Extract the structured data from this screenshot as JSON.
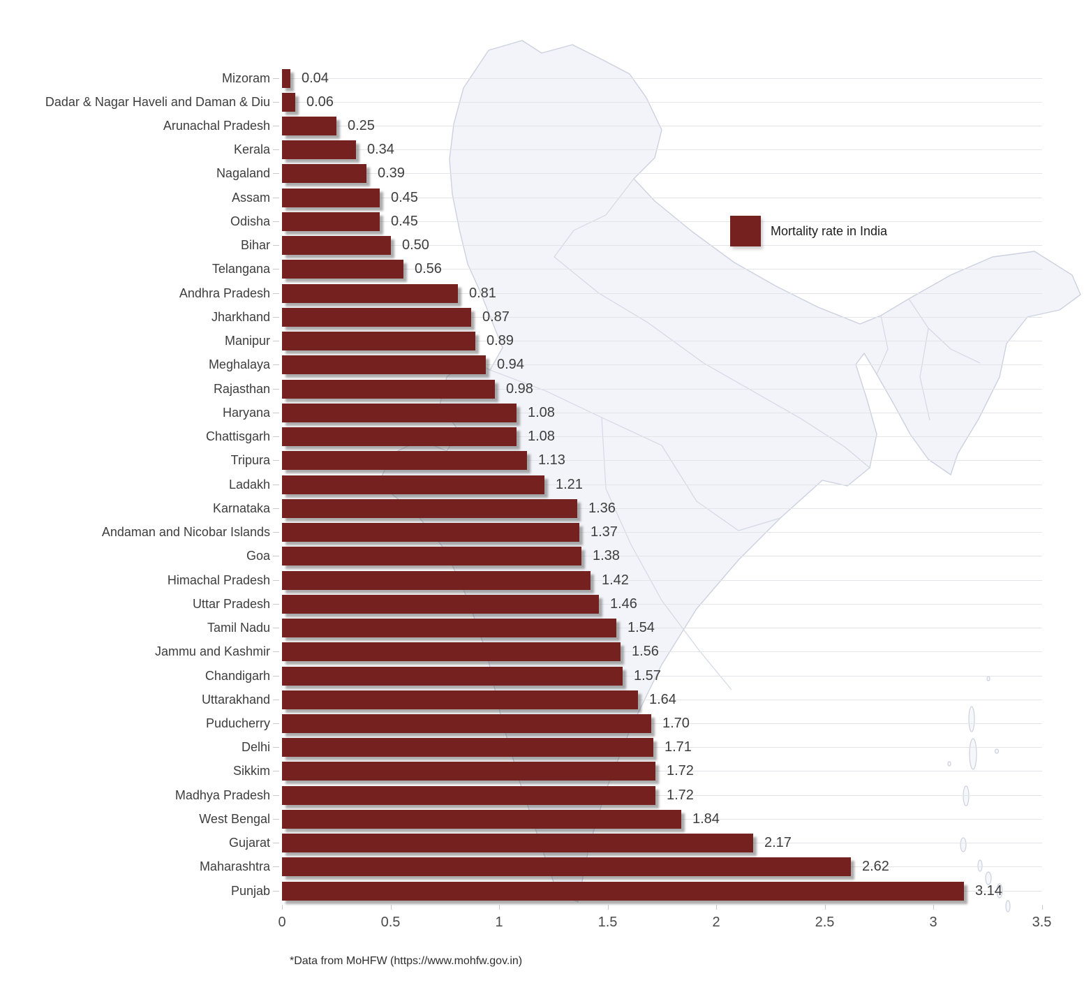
{
  "chart_data": {
    "type": "bar",
    "orientation": "horizontal",
    "legend": {
      "label": "Mortality rate in India",
      "position": "upper-right"
    },
    "categories": [
      "Mizoram",
      "Dadar & Nagar Haveli and Daman & Diu",
      "Arunachal Pradesh",
      "Kerala",
      "Nagaland",
      "Assam",
      "Odisha",
      "Bihar",
      "Telangana",
      "Andhra Pradesh",
      "Jharkhand",
      "Manipur",
      "Meghalaya",
      "Rajasthan",
      "Haryana",
      "Chattisgarh",
      "Tripura",
      "Ladakh",
      "Karnataka",
      "Andaman and Nicobar Islands",
      "Goa",
      "Himachal Pradesh",
      "Uttar Pradesh",
      "Tamil Nadu",
      "Jammu and Kashmir",
      "Chandigarh",
      "Uttarakhand",
      "Puducherry",
      "Delhi",
      "Sikkim",
      "Madhya Pradesh",
      "West Bengal",
      "Gujarat",
      "Maharashtra",
      "Punjab"
    ],
    "values": [
      0.04,
      0.06,
      0.25,
      0.34,
      0.39,
      0.45,
      0.45,
      0.5,
      0.56,
      0.81,
      0.87,
      0.89,
      0.94,
      0.98,
      1.08,
      1.08,
      1.13,
      1.21,
      1.36,
      1.37,
      1.38,
      1.42,
      1.46,
      1.54,
      1.56,
      1.57,
      1.64,
      1.7,
      1.71,
      1.72,
      1.72,
      1.84,
      2.17,
      2.62,
      3.14
    ],
    "value_labels": [
      "0.04",
      "0.06",
      "0.25",
      "0.34",
      "0.39",
      "0.45",
      "0.45",
      "0.50",
      "0.56",
      "0.81",
      "0.87",
      "0.89",
      "0.94",
      "0.98",
      "1.08",
      "1.08",
      "1.13",
      "1.21",
      "1.36",
      "1.37",
      "1.38",
      "1.42",
      "1.46",
      "1.54",
      "1.56",
      "1.57",
      "1.64",
      "1.70",
      "1.71",
      "1.72",
      "1.72",
      "1.84",
      "2.17",
      "2.62",
      "3.14"
    ],
    "x_ticks": [
      "0",
      "0.5",
      "1",
      "1.5",
      "2",
      "2.5",
      "3",
      "3.5"
    ],
    "xlim": [
      0,
      3.5
    ],
    "grid": "horizontal row lines",
    "background": "faint outline map of India with state borders",
    "bar_color": "#752120"
  },
  "footnote": "*Data from MoHFW (https://www.mohfw.gov.in)",
  "colors": {
    "bar": "#752120",
    "grid": "#e3e4e8",
    "map_fill": "#f3f4f9",
    "map_stroke": "#ccd1df",
    "text": "#3d3d3d"
  }
}
